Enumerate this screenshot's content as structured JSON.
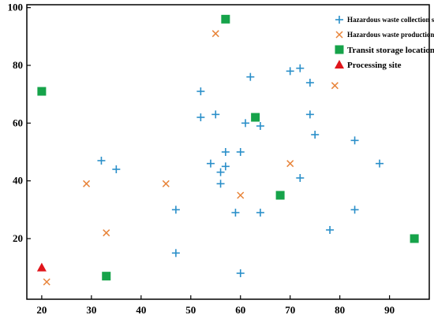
{
  "chart_data": {
    "type": "scatter",
    "title": "",
    "xlabel": "",
    "ylabel": "",
    "xlim": [
      17,
      98
    ],
    "ylim": [
      -1,
      101
    ],
    "xticks": [
      20,
      30,
      40,
      50,
      60,
      70,
      80,
      90
    ],
    "yticks": [
      20,
      40,
      60,
      80,
      100
    ],
    "grid": false,
    "legend_position": "top-right",
    "series": [
      {
        "name": "Hazardous waste collection site",
        "marker": "plus",
        "color": "#2a8fc9",
        "points": [
          [
            32,
            47
          ],
          [
            35,
            44
          ],
          [
            47,
            30
          ],
          [
            47,
            15
          ],
          [
            52,
            71
          ],
          [
            52,
            62
          ],
          [
            55,
            63
          ],
          [
            54,
            46
          ],
          [
            56,
            43
          ],
          [
            56,
            39
          ],
          [
            57,
            45
          ],
          [
            57,
            50
          ],
          [
            59,
            29
          ],
          [
            60,
            50
          ],
          [
            60,
            8
          ],
          [
            61,
            60
          ],
          [
            62,
            76
          ],
          [
            64,
            59
          ],
          [
            64,
            29
          ],
          [
            70,
            78
          ],
          [
            72,
            79
          ],
          [
            72,
            41
          ],
          [
            74,
            74
          ],
          [
            74,
            63
          ],
          [
            75,
            56
          ],
          [
            78,
            23
          ],
          [
            83,
            54
          ],
          [
            83,
            30
          ],
          [
            88,
            46
          ]
        ]
      },
      {
        "name": "Hazardous waste production site",
        "marker": "x",
        "color": "#e8843a",
        "points": [
          [
            21,
            5
          ],
          [
            29,
            39
          ],
          [
            33,
            22
          ],
          [
            45,
            39
          ],
          [
            55,
            91
          ],
          [
            60,
            35
          ],
          [
            70,
            46
          ],
          [
            79,
            73
          ]
        ]
      },
      {
        "name": "Transit storage location",
        "marker": "square",
        "color": "#16a34a",
        "points": [
          [
            20,
            71
          ],
          [
            33,
            7
          ],
          [
            57,
            96
          ],
          [
            63,
            62
          ],
          [
            68,
            35
          ],
          [
            95,
            20
          ]
        ]
      },
      {
        "name": "Processing site",
        "marker": "triangle",
        "color": "#e0151b",
        "points": [
          [
            20,
            10
          ]
        ]
      }
    ]
  }
}
